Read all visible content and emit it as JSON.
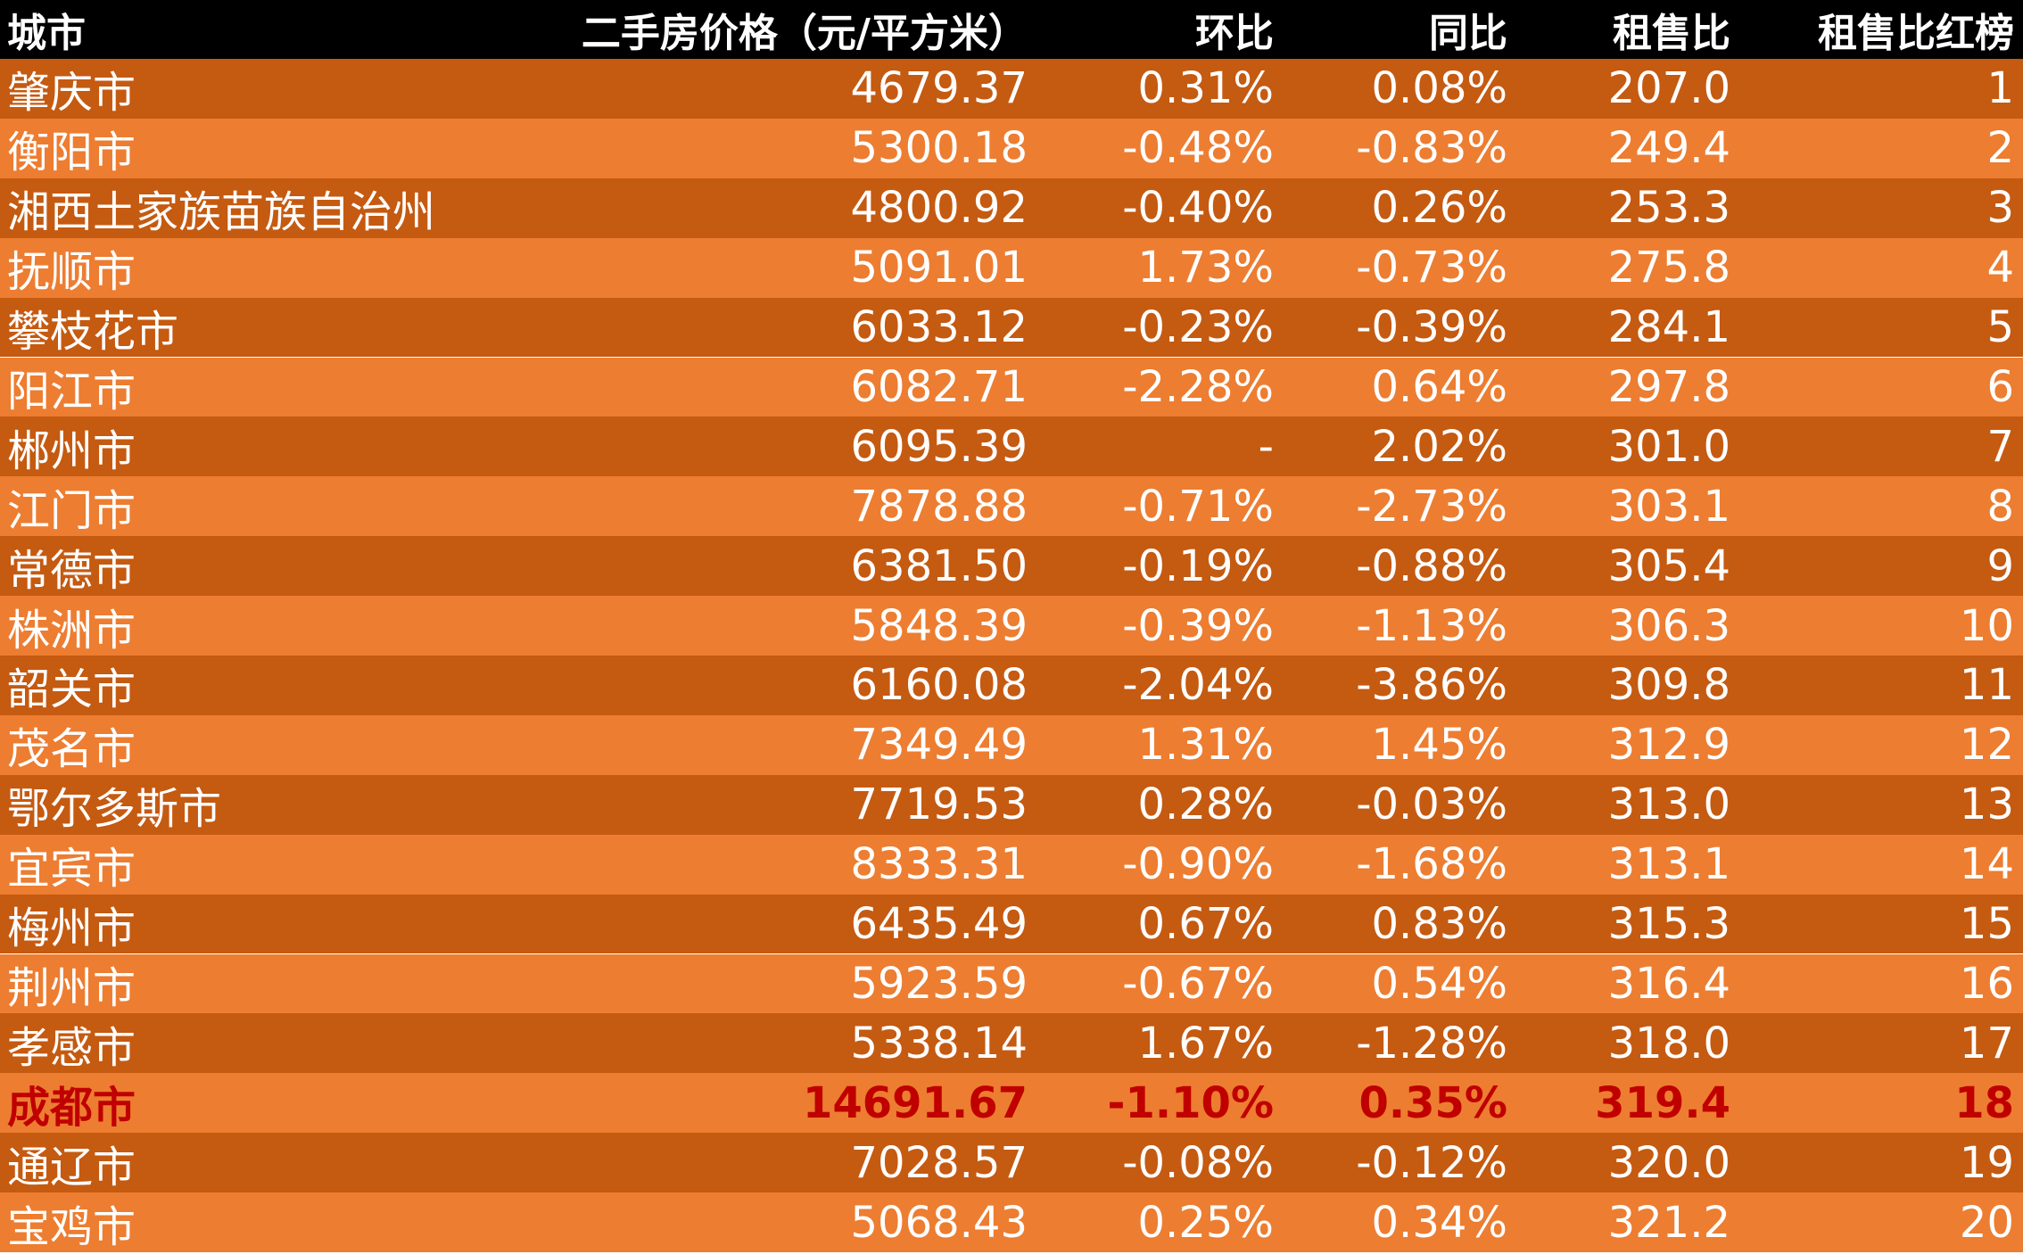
{
  "table": {
    "headers": {
      "city": "城市",
      "price": "二手房价格（元/平方米）",
      "mom": "环比",
      "yoy": "同比",
      "ratio": "租售比",
      "rank": "租售比红榜"
    },
    "rows": [
      {
        "city": "肇庆市",
        "price": "4679.37",
        "mom": "0.31%",
        "yoy": "0.08%",
        "ratio": "207.0",
        "rank": "1"
      },
      {
        "city": "衡阳市",
        "price": "5300.18",
        "mom": "-0.48%",
        "yoy": "-0.83%",
        "ratio": "249.4",
        "rank": "2"
      },
      {
        "city": "湘西土家族苗族自治州",
        "price": "4800.92",
        "mom": "-0.40%",
        "yoy": "0.26%",
        "ratio": "253.3",
        "rank": "3"
      },
      {
        "city": "抚顺市",
        "price": "5091.01",
        "mom": "1.73%",
        "yoy": "-0.73%",
        "ratio": "275.8",
        "rank": "4"
      },
      {
        "city": "攀枝花市",
        "price": "6033.12",
        "mom": "-0.23%",
        "yoy": "-0.39%",
        "ratio": "284.1",
        "rank": "5"
      },
      {
        "city": "阳江市",
        "price": "6082.71",
        "mom": "-2.28%",
        "yoy": "0.64%",
        "ratio": "297.8",
        "rank": "6"
      },
      {
        "city": "郴州市",
        "price": "6095.39",
        "mom": "-",
        "yoy": "2.02%",
        "ratio": "301.0",
        "rank": "7"
      },
      {
        "city": "江门市",
        "price": "7878.88",
        "mom": "-0.71%",
        "yoy": "-2.73%",
        "ratio": "303.1",
        "rank": "8"
      },
      {
        "city": "常德市",
        "price": "6381.50",
        "mom": "-0.19%",
        "yoy": "-0.88%",
        "ratio": "305.4",
        "rank": "9"
      },
      {
        "city": "株洲市",
        "price": "5848.39",
        "mom": "-0.39%",
        "yoy": "-1.13%",
        "ratio": "306.3",
        "rank": "10"
      },
      {
        "city": "韶关市",
        "price": "6160.08",
        "mom": "-2.04%",
        "yoy": "-3.86%",
        "ratio": "309.8",
        "rank": "11"
      },
      {
        "city": "茂名市",
        "price": "7349.49",
        "mom": "1.31%",
        "yoy": "1.45%",
        "ratio": "312.9",
        "rank": "12"
      },
      {
        "city": "鄂尔多斯市",
        "price": "7719.53",
        "mom": "0.28%",
        "yoy": "-0.03%",
        "ratio": "313.0",
        "rank": "13"
      },
      {
        "city": "宜宾市",
        "price": "8333.31",
        "mom": "-0.90%",
        "yoy": "-1.68%",
        "ratio": "313.1",
        "rank": "14"
      },
      {
        "city": "梅州市",
        "price": "6435.49",
        "mom": "0.67%",
        "yoy": "0.83%",
        "ratio": "315.3",
        "rank": "15"
      },
      {
        "city": "荆州市",
        "price": "5923.59",
        "mom": "-0.67%",
        "yoy": "0.54%",
        "ratio": "316.4",
        "rank": "16"
      },
      {
        "city": "孝感市",
        "price": "5338.14",
        "mom": "1.67%",
        "yoy": "-1.28%",
        "ratio": "318.0",
        "rank": "17"
      },
      {
        "city": "成都市",
        "price": "14691.67",
        "mom": "-1.10%",
        "yoy": "0.35%",
        "ratio": "319.4",
        "rank": "18",
        "highlight": true
      },
      {
        "city": "通辽市",
        "price": "7028.57",
        "mom": "-0.08%",
        "yoy": "-0.12%",
        "ratio": "320.0",
        "rank": "19"
      },
      {
        "city": "宝鸡市",
        "price": "5068.43",
        "mom": "0.25%",
        "yoy": "0.34%",
        "ratio": "321.2",
        "rank": "20"
      }
    ]
  },
  "colors": {
    "header_bg": "#000000",
    "row_dark": "#c55a11",
    "row_light": "#ed7d31",
    "highlight_text": "#c00000"
  }
}
